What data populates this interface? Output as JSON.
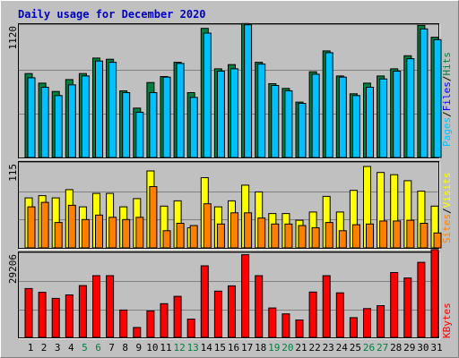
{
  "title": "Daily usage for December 2020",
  "colors": {
    "background": "#c0c0c0",
    "hits": "#008040",
    "files": "#00c0ff",
    "visits": "#ffff00",
    "sites": "#ff8000",
    "kbytes": "#ff0000",
    "weekend": "#008040",
    "weekday": "#000000",
    "title": "#0000c0"
  },
  "chart_data": [
    {
      "type": "bar",
      "panel": "top",
      "ytick": "1120",
      "side_labels": [
        "Pages",
        "/",
        "Files",
        "/",
        "Hits"
      ],
      "side_label_colors": [
        "#00c0ff",
        "#000000",
        "#0000ff",
        "#000000",
        "#008040"
      ],
      "categories": [
        "1",
        "2",
        "3",
        "4",
        "5",
        "6",
        "7",
        "8",
        "9",
        "10",
        "11",
        "12",
        "13",
        "14",
        "15",
        "16",
        "17",
        "18",
        "19",
        "20",
        "21",
        "22",
        "23",
        "24",
        "25",
        "26",
        "27",
        "28",
        "29",
        "30",
        "31"
      ],
      "ylim": [
        0,
        1120
      ],
      "series": [
        {
          "name": "Hits",
          "values": [
            705,
            625,
            555,
            655,
            705,
            835,
            825,
            560,
            415,
            630,
            680,
            800,
            545,
            1085,
            745,
            780,
            1125,
            800,
            620,
            580,
            465,
            720,
            895,
            685,
            535,
            625,
            685,
            745,
            855,
            1110,
            1010
          ]
        },
        {
          "name": "Files",
          "values": [
            670,
            590,
            520,
            610,
            685,
            810,
            800,
            545,
            380,
            545,
            675,
            790,
            505,
            1045,
            725,
            745,
            1115,
            785,
            605,
            560,
            455,
            700,
            880,
            675,
            520,
            590,
            660,
            725,
            830,
            1080,
            990
          ]
        }
      ]
    },
    {
      "type": "bar",
      "panel": "middle",
      "ytick": "115",
      "side_labels": [
        "Sites",
        "/",
        "Visits"
      ],
      "side_label_colors": [
        "#ff8000",
        "#000000",
        "#ffff00"
      ],
      "ylim": [
        0,
        115
      ],
      "series": [
        {
          "name": "Visits",
          "values": [
            67,
            70,
            67,
            78,
            55,
            73,
            73,
            55,
            66,
            103,
            56,
            63,
            27,
            94,
            55,
            63,
            84,
            75,
            46,
            46,
            37,
            48,
            69,
            48,
            77,
            109,
            101,
            98,
            90,
            76,
            56
          ]
        },
        {
          "name": "Sites",
          "values": [
            55,
            61,
            34,
            57,
            38,
            44,
            41,
            38,
            41,
            82,
            23,
            33,
            30,
            59,
            32,
            47,
            47,
            40,
            32,
            32,
            30,
            27,
            34,
            23,
            31,
            32,
            36,
            36,
            37,
            33,
            20
          ]
        }
      ]
    },
    {
      "type": "bar",
      "panel": "bottom",
      "ytick": "29206",
      "side_labels": [
        "KBytes"
      ],
      "side_label_colors": [
        "#ff0000"
      ],
      "ylim": [
        0,
        29206
      ],
      "series": [
        {
          "name": "KBytes",
          "values": [
            16800,
            15500,
            13400,
            14600,
            17800,
            21200,
            21200,
            9400,
            3400,
            9100,
            11600,
            14100,
            6300,
            24600,
            15900,
            17700,
            28400,
            21200,
            10100,
            8100,
            6000,
            15600,
            21200,
            15300,
            6800,
            9900,
            10900,
            22300,
            20400,
            25800,
            30200
          ]
        }
      ]
    }
  ],
  "x_labels": [
    {
      "day": "1",
      "weekend": false
    },
    {
      "day": "2",
      "weekend": false
    },
    {
      "day": "3",
      "weekend": false
    },
    {
      "day": "4",
      "weekend": false
    },
    {
      "day": "5",
      "weekend": true
    },
    {
      "day": "6",
      "weekend": true
    },
    {
      "day": "7",
      "weekend": false
    },
    {
      "day": "8",
      "weekend": false
    },
    {
      "day": "9",
      "weekend": false
    },
    {
      "day": "10",
      "weekend": false
    },
    {
      "day": "11",
      "weekend": false
    },
    {
      "day": "12",
      "weekend": true
    },
    {
      "day": "13",
      "weekend": true
    },
    {
      "day": "14",
      "weekend": false
    },
    {
      "day": "15",
      "weekend": false
    },
    {
      "day": "16",
      "weekend": false
    },
    {
      "day": "17",
      "weekend": false
    },
    {
      "day": "18",
      "weekend": false
    },
    {
      "day": "19",
      "weekend": true
    },
    {
      "day": "20",
      "weekend": true
    },
    {
      "day": "21",
      "weekend": false
    },
    {
      "day": "22",
      "weekend": false
    },
    {
      "day": "23",
      "weekend": false
    },
    {
      "day": "24",
      "weekend": false
    },
    {
      "day": "25",
      "weekend": false
    },
    {
      "day": "26",
      "weekend": true
    },
    {
      "day": "27",
      "weekend": true
    },
    {
      "day": "28",
      "weekend": false
    },
    {
      "day": "29",
      "weekend": false
    },
    {
      "day": "30",
      "weekend": false
    },
    {
      "day": "31",
      "weekend": false
    }
  ]
}
